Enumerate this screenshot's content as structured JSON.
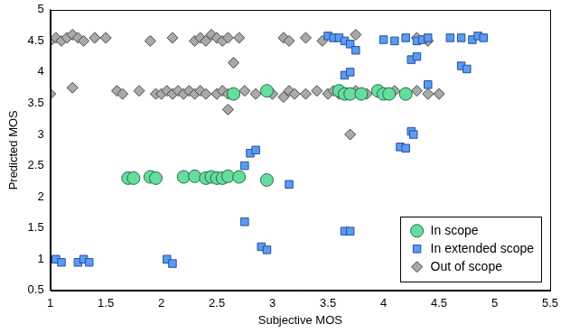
{
  "chart_data": {
    "type": "scatter",
    "x_label": "Subjective MOS",
    "y_label": "Predicted MOS",
    "xlim": [
      1,
      5.5
    ],
    "xticks": [
      1,
      1.5,
      2,
      2.5,
      3,
      3.5,
      4,
      4.5,
      5,
      5.5
    ],
    "ylim": [
      0.5,
      5
    ],
    "yticks": [
      0.5,
      1,
      1.5,
      2,
      2.5,
      3,
      3.5,
      4,
      4.5,
      5
    ],
    "grid": false,
    "legend": "lower right",
    "series": [
      {
        "name": "In scope",
        "color": "#66dd9e",
        "marker": "circle",
        "x": [
          2.65,
          2.95,
          3.6,
          3.65,
          3.7,
          3.8,
          3.95,
          4.0,
          4.05,
          4.2,
          1.7,
          1.75,
          1.9,
          1.95,
          2.2,
          2.3,
          2.4,
          2.45,
          2.5,
          2.55,
          2.6,
          2.7,
          2.95
        ],
        "values": [
          3.65,
          3.7,
          3.7,
          3.65,
          3.65,
          3.65,
          3.7,
          3.65,
          3.65,
          3.65,
          2.3,
          2.3,
          2.32,
          2.3,
          2.32,
          2.33,
          2.3,
          2.32,
          2.3,
          2.3,
          2.33,
          2.32,
          2.27
        ]
      },
      {
        "name": "In extended scope",
        "color": "#5b9bf0",
        "marker": "square",
        "x": [
          1.05,
          1.1,
          1.25,
          1.3,
          1.35,
          2.05,
          2.1,
          2.75,
          2.75,
          2.8,
          2.85,
          2.9,
          2.95,
          3.15,
          3.65,
          3.7,
          3.65,
          3.7,
          3.5,
          3.55,
          3.6,
          3.65,
          3.7,
          3.75,
          4.0,
          4.1,
          4.2,
          4.3,
          4.35,
          4.4,
          4.6,
          4.7,
          4.8,
          4.85,
          4.9,
          4.25,
          4.3,
          4.4,
          4.15,
          4.2,
          4.25,
          4.27,
          4.7,
          4.75
        ],
        "values": [
          1.0,
          0.95,
          0.95,
          1.0,
          0.95,
          1.0,
          0.93,
          1.6,
          2.5,
          2.7,
          2.75,
          1.2,
          1.15,
          2.2,
          1.45,
          1.45,
          3.95,
          4.0,
          4.58,
          4.55,
          4.55,
          4.5,
          4.45,
          4.35,
          4.52,
          4.5,
          4.55,
          4.5,
          4.52,
          4.55,
          4.55,
          4.55,
          4.52,
          4.58,
          4.55,
          4.2,
          4.25,
          3.8,
          2.8,
          2.78,
          3.05,
          3.0,
          4.1,
          4.05
        ]
      },
      {
        "name": "Out of scope",
        "color": "#aaaaaa",
        "marker": "diamond",
        "x": [
          1.0,
          1.05,
          1.1,
          1.15,
          1.2,
          1.25,
          1.3,
          1.4,
          1.5,
          1.9,
          2.1,
          2.3,
          2.35,
          2.4,
          2.45,
          2.5,
          2.55,
          2.6,
          2.7,
          3.1,
          3.15,
          3.3,
          3.45,
          3.75,
          4.3,
          4.4,
          1.0,
          1.2,
          1.6,
          1.65,
          1.8,
          1.95,
          2.0,
          2.05,
          2.1,
          2.15,
          2.2,
          2.25,
          2.3,
          2.35,
          2.4,
          2.5,
          2.55,
          2.6,
          2.75,
          2.85,
          3.0,
          3.1,
          3.15,
          3.2,
          3.3,
          3.4,
          3.5,
          3.55,
          3.6,
          3.75,
          3.85,
          4.0,
          4.1,
          4.2,
          4.3,
          4.4,
          4.5,
          2.65,
          2.6,
          3.7
        ],
        "values": [
          4.5,
          4.55,
          4.5,
          4.55,
          4.6,
          4.55,
          4.5,
          4.55,
          4.55,
          4.5,
          4.55,
          4.5,
          4.55,
          4.5,
          4.6,
          4.55,
          4.5,
          4.55,
          4.55,
          4.55,
          4.5,
          4.55,
          4.5,
          4.6,
          4.55,
          4.5,
          3.65,
          3.75,
          3.7,
          3.65,
          3.7,
          3.65,
          3.65,
          3.7,
          3.65,
          3.7,
          3.65,
          3.7,
          3.65,
          3.7,
          3.65,
          3.65,
          3.7,
          3.65,
          3.7,
          3.65,
          3.65,
          3.6,
          3.7,
          3.65,
          3.65,
          3.7,
          3.65,
          3.7,
          3.65,
          3.7,
          3.65,
          3.65,
          3.7,
          3.65,
          3.7,
          3.65,
          3.65,
          4.15,
          3.4,
          3.0
        ]
      }
    ]
  }
}
